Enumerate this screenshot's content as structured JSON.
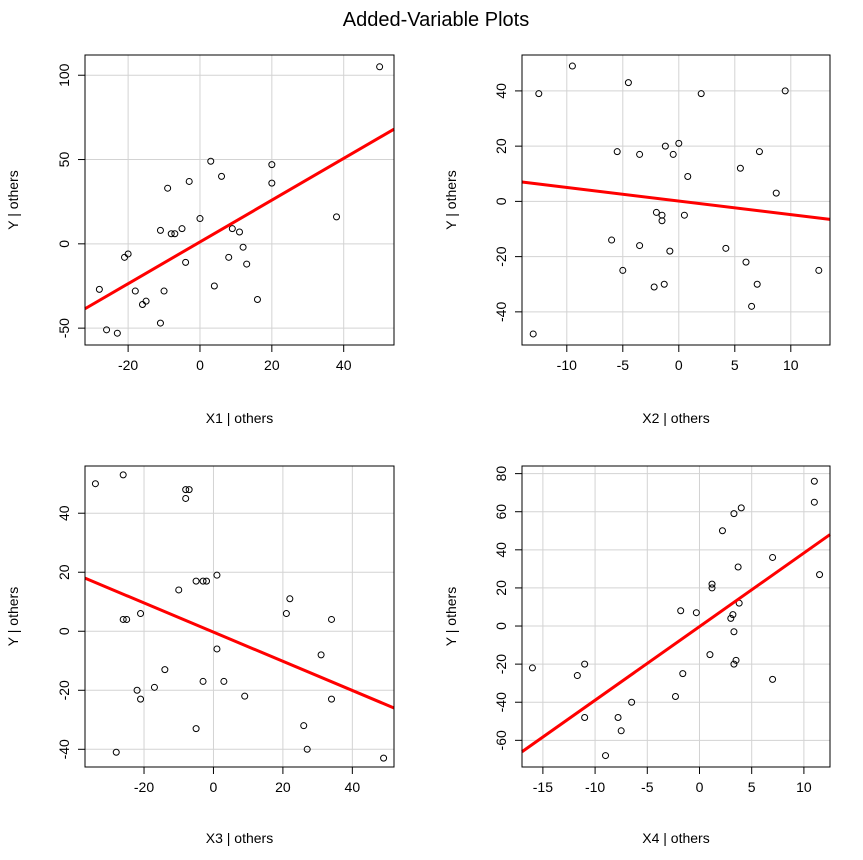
{
  "figure": {
    "title": "Added-Variable Plots"
  },
  "chart_data": [
    {
      "type": "scatter",
      "xlabel": "X1 | others",
      "ylabel": "Y  | others",
      "xlim": [
        -32,
        54
      ],
      "ylim": [
        -60,
        112
      ],
      "xticks": [
        -20,
        0,
        20,
        40
      ],
      "yticks": [
        -50,
        0,
        50,
        100
      ],
      "grid": true,
      "fit_line": {
        "x": [
          -32,
          54
        ],
        "y": [
          -38.5,
          68
        ],
        "color": "#ff0000"
      },
      "x": [
        50,
        20,
        20,
        38,
        3,
        6,
        -3,
        -9,
        -8,
        -5,
        -11,
        -7,
        0,
        9,
        11,
        12,
        13,
        8,
        4,
        16,
        -4,
        -20,
        -21,
        -18,
        -16,
        -15,
        -10,
        -11,
        -28,
        -26,
        -23
      ],
      "y": [
        105,
        47,
        36,
        16,
        49,
        40,
        37,
        33,
        6,
        9,
        8,
        6,
        15,
        9,
        7,
        -2,
        -12,
        -8,
        -25,
        -33,
        -11,
        -6,
        -8,
        -28,
        -36,
        -34,
        -28,
        -47,
        -27,
        -51,
        -53
      ]
    },
    {
      "type": "scatter",
      "xlabel": "X2 | others",
      "ylabel": "Y  | others",
      "xlim": [
        -14,
        13.5
      ],
      "ylim": [
        -52,
        53
      ],
      "xticks": [
        -10,
        -5,
        0,
        5,
        10
      ],
      "yticks": [
        -40,
        -20,
        0,
        20,
        40
      ],
      "grid": true,
      "fit_line": {
        "x": [
          -14,
          13.5
        ],
        "y": [
          7,
          -6.5
        ],
        "color": "#ff0000"
      },
      "x": [
        -12.5,
        -9.5,
        -4.5,
        2,
        9.5,
        -5.5,
        -3.5,
        -1.2,
        -0.5,
        0,
        0.8,
        5.5,
        7.2,
        8.7,
        -13,
        -6,
        -5,
        -2,
        -1.5,
        -1.5,
        0.5,
        -3.5,
        -0.8,
        -2.2,
        -1.3,
        4.2,
        6,
        7,
        6.5,
        12.5
      ],
      "y": [
        39,
        49,
        43,
        39,
        40,
        18,
        17,
        20,
        17,
        21,
        9,
        12,
        18,
        3,
        -48,
        -14,
        -25,
        -4,
        -5,
        -7,
        -5,
        -16,
        -18,
        -31,
        -30,
        -17,
        -22,
        -30,
        -38,
        -25
      ]
    },
    {
      "type": "scatter",
      "xlabel": "X3 | others",
      "ylabel": "Y  | others",
      "xlim": [
        -37,
        52
      ],
      "ylim": [
        -46,
        56
      ],
      "xticks": [
        -20,
        0,
        20,
        40
      ],
      "yticks": [
        -40,
        -20,
        0,
        20,
        40
      ],
      "grid": true,
      "fit_line": {
        "x": [
          -37,
          52
        ],
        "y": [
          18,
          -26
        ],
        "color": "#ff0000"
      },
      "x": [
        -34,
        -26,
        -8,
        -7,
        -8,
        -5,
        -3,
        -2,
        1,
        -10,
        -25,
        -21,
        -26,
        21,
        22,
        34,
        1,
        31,
        -14,
        -17,
        -22,
        -21,
        -3,
        3,
        9,
        34,
        -5,
        26,
        27,
        -28,
        49
      ],
      "y": [
        50,
        53,
        48,
        48,
        45,
        17,
        17,
        17,
        19,
        14,
        4,
        6,
        4,
        6,
        11,
        4,
        -6,
        -8,
        -13,
        -19,
        -20,
        -23,
        -17,
        -17,
        -22,
        -23,
        -33,
        -32,
        -40,
        -41,
        -43
      ],
      "note_skip_dup": true
    },
    {
      "type": "scatter",
      "xlabel": "X4 | others",
      "ylabel": "Y  | others",
      "xlim": [
        -17,
        12.5
      ],
      "ylim": [
        -74,
        84
      ],
      "xticks": [
        -15,
        -10,
        -5,
        0,
        5,
        10
      ],
      "yticks": [
        -60,
        -40,
        -20,
        0,
        20,
        40,
        60,
        80
      ],
      "grid": true,
      "fit_line": {
        "x": [
          -17,
          12.5
        ],
        "y": [
          -66,
          48
        ],
        "color": "#ff0000"
      },
      "x": [
        11,
        11,
        11.5,
        2.2,
        3.3,
        4,
        7,
        3.7,
        1.2,
        1.2,
        -1.8,
        -0.3,
        3,
        3.2,
        3.3,
        3.8,
        -1.6,
        1,
        -2.3,
        3.3,
        -6.5,
        3.5,
        -11,
        -11.7,
        -16,
        -11,
        -7.8,
        -7.5,
        -9,
        7
      ],
      "y": [
        76,
        65,
        27,
        50,
        59,
        62,
        36,
        31,
        22,
        20,
        8,
        7,
        4,
        6,
        -3,
        12,
        -25,
        -15,
        -37,
        -20,
        -40,
        -18,
        -20,
        -26,
        -22,
        -48,
        -48,
        -55,
        -68,
        -28
      ]
    }
  ],
  "colors": {
    "points": "#000000",
    "fit_line": "#ff0000",
    "grid": "#d3d3d3"
  }
}
